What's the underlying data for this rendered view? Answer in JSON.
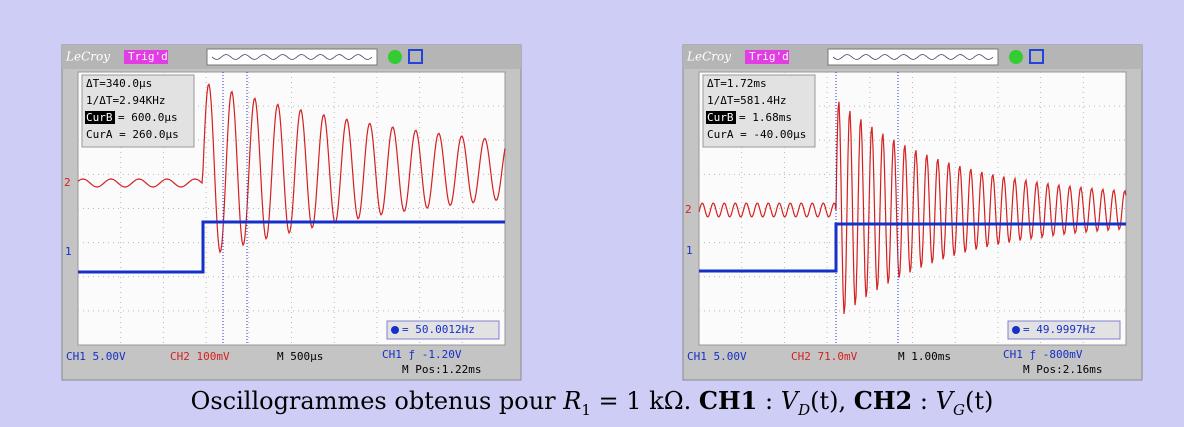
{
  "scopes": [
    {
      "brand": "LeCroy",
      "status": "Trig'd",
      "readouts": {
        "delta_t": "ΔT=340.0µs",
        "inv_delta_t": "1/ΔT=2.94KHz",
        "cur_b_label": "CurB",
        "cur_b": "= 600.0µs",
        "cur_a": "CurA = 260.0µs"
      },
      "frequency": "= 50.0012Hz",
      "ch2_marker": "2",
      "ch1_marker": "1",
      "ch1": "CH1 5.00V",
      "ch2": "CH2 100mV",
      "timebase": "M 500µs",
      "trigger": "CH1 ƒ -1.20V",
      "m_pos": "M Pos:1.22ms"
    },
    {
      "brand": "LeCroy",
      "status": "Trig'd",
      "readouts": {
        "delta_t": "ΔT=1.72ms",
        "inv_delta_t": "1/ΔT=581.4Hz",
        "cur_b_label": "CurB",
        "cur_b": "= 1.68ms",
        "cur_a": "CurA = -40.00µs"
      },
      "frequency": "= 49.9997Hz",
      "ch2_marker": "2",
      "ch1_marker": "1",
      "ch1": "CH1 5.00V",
      "ch2": "CH2 71.0mV",
      "timebase": "M 1.00ms",
      "trigger": "CH1 ƒ -800mV",
      "m_pos": "M Pos:2.16ms"
    }
  ],
  "caption": {
    "text": "Oscillogrammes obtenus pour",
    "r": "R",
    "r_sub": "1",
    "r_val": "= 1 kΩ.",
    "ch1": "CH1",
    "colon1": ":",
    "vd": "V",
    "vd_sub": "D",
    "vd_arg": "(t),",
    "ch2": "CH2",
    "colon2": ":",
    "vg": "V",
    "vg_sub": "G",
    "vg_arg": "(t)"
  }
}
